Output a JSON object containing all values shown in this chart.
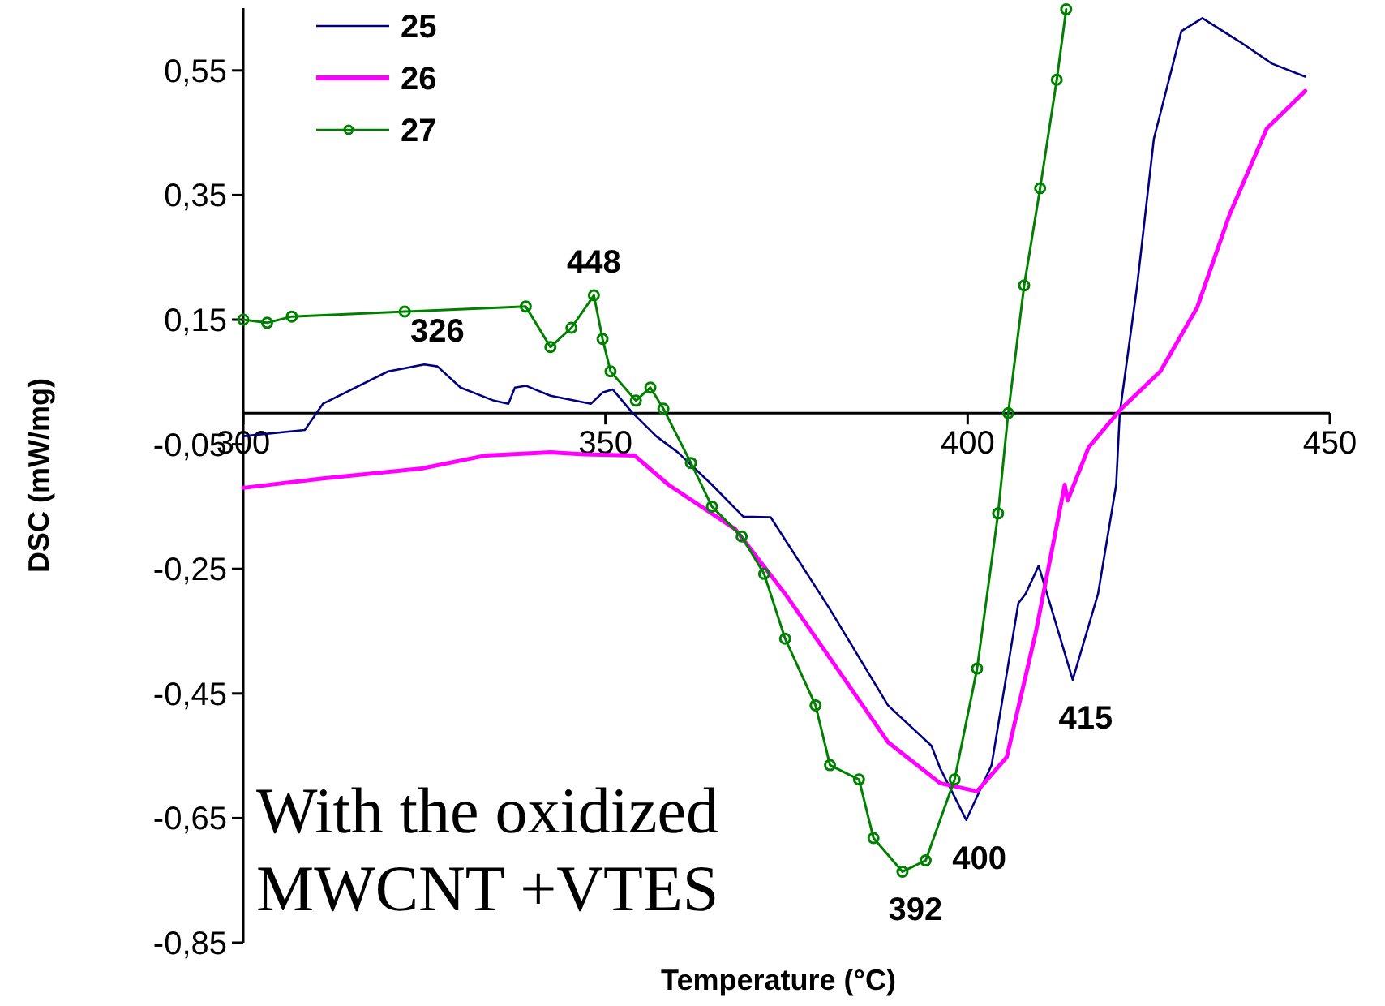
{
  "chart_data": {
    "type": "line",
    "xlabel": "Temperature (°C)",
    "ylabel": "DSC (mW/mg)",
    "xlim": [
      300,
      450
    ],
    "xticks": [
      300,
      350,
      400,
      450
    ],
    "ylim": [
      -0.85,
      0.65
    ],
    "yticks": [
      {
        "value": -0.85,
        "label": "-0,85"
      },
      {
        "value": -0.65,
        "label": "-0,65"
      },
      {
        "value": -0.45,
        "label": "-0,45"
      },
      {
        "value": -0.25,
        "label": "-0,25"
      },
      {
        "value": -0.05,
        "label": "-0,05"
      },
      {
        "value": 0.15,
        "label": "0,15"
      },
      {
        "value": 0.35,
        "label": "0,35"
      },
      {
        "value": 0.55,
        "label": "0,55"
      }
    ],
    "grid": false,
    "legend": "top left",
    "series": [
      {
        "name": "25",
        "color": "#000080",
        "marker": "none",
        "x": [
          300,
          308.5,
          311,
          320,
          325,
          326.8,
          330,
          334.6,
          336.6,
          337.5,
          339,
          342.4,
          348,
          349.6,
          351,
          353.6,
          357,
          360,
          364.7,
          369,
          372.8,
          381,
          389,
          395,
          396.2,
          399.8,
          403.3,
          407,
          408,
          409.8,
          414.5,
          418,
          420.5,
          421,
          423.4,
          425.7,
          429.5,
          432.4,
          437.7,
          442,
          446.6
        ],
        "values": [
          -0.037,
          -0.027,
          0.015,
          0.067,
          0.078,
          0.075,
          0.041,
          0.02,
          0.015,
          0.041,
          0.044,
          0.028,
          0.015,
          0.033,
          0.038,
          0.002,
          -0.037,
          -0.063,
          -0.115,
          -0.166,
          -0.167,
          -0.315,
          -0.469,
          -0.534,
          -0.57,
          -0.653,
          -0.565,
          -0.305,
          -0.29,
          -0.245,
          -0.428,
          -0.29,
          -0.115,
          0,
          0.205,
          0.44,
          0.613,
          0.634,
          0.595,
          0.561,
          0.54
        ]
      },
      {
        "name": "26",
        "color": "#ff00ff",
        "marker": "none",
        "x": [
          300,
          311,
          324.6,
          333.5,
          342.4,
          347,
          354,
          358.7,
          367.9,
          374.8,
          382,
          389,
          396.2,
          401.3,
          405.4,
          409.4,
          413.4,
          413.8,
          416.7,
          421.2,
          426.6,
          431.7,
          436.2,
          441.3,
          446.6
        ],
        "values": [
          -0.12,
          -0.105,
          -0.089,
          -0.068,
          -0.063,
          -0.066,
          -0.068,
          -0.115,
          -0.186,
          -0.29,
          -0.41,
          -0.528,
          -0.594,
          -0.607,
          -0.552,
          -0.352,
          -0.115,
          -0.14,
          -0.055,
          0.007,
          0.067,
          0.17,
          0.32,
          0.457,
          0.517
        ]
      },
      {
        "name": "27",
        "color": "#008000",
        "marker": "circle",
        "x": [
          300,
          303.3,
          306.7,
          322.3,
          339,
          342.4,
          345.3,
          348.4,
          349.6,
          350.7,
          354.2,
          356.2,
          358,
          361.8,
          364.7,
          368.8,
          371.9,
          374.8,
          379,
          381,
          385,
          387,
          391,
          394.2,
          398.2,
          401.3,
          404.2,
          405.6,
          407.8,
          410,
          412.3,
          413.6
        ],
        "values": [
          0.15,
          0.145,
          0.155,
          0.163,
          0.171,
          0.106,
          0.137,
          0.189,
          0.119,
          0.067,
          0.02,
          0.041,
          0.007,
          -0.08,
          -0.15,
          -0.198,
          -0.258,
          -0.362,
          -0.469,
          -0.565,
          -0.588,
          -0.682,
          -0.736,
          -0.718,
          -0.588,
          -0.41,
          -0.161,
          0,
          0.205,
          0.361,
          0.535,
          0.648
        ]
      }
    ],
    "annotations": [
      {
        "text": "326",
        "x": 326.8,
        "y": 0.078
      },
      {
        "text": "448",
        "x": 348.4,
        "y": 0.189
      },
      {
        "text": "392",
        "x": 391,
        "y": -0.736
      },
      {
        "text": "400",
        "x": 399.8,
        "y": -0.653
      },
      {
        "text": "415",
        "x": 414.5,
        "y": -0.428
      },
      "With the oxidized MWCNT +VTES"
    ]
  }
}
